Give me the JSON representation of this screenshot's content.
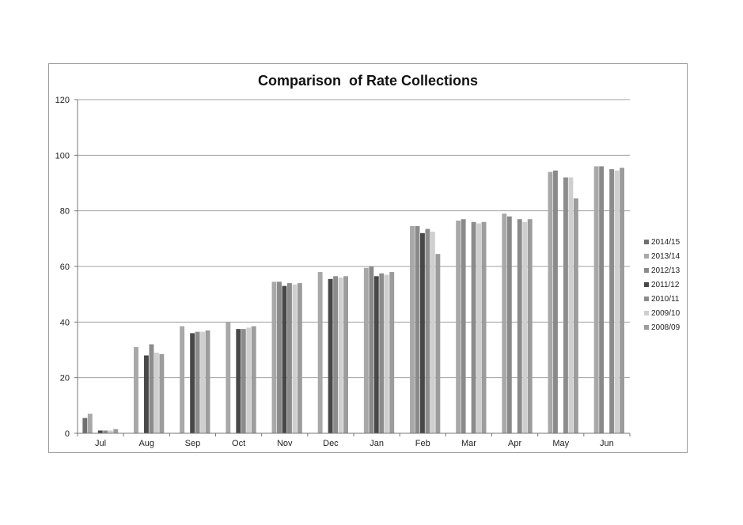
{
  "chart_data": {
    "type": "bar",
    "title": "Comparison  of Rate Collections",
    "xlabel": "",
    "ylabel": "",
    "categories": [
      "Jul",
      "Aug",
      "Sep",
      "Oct",
      "Nov",
      "Dec",
      "Jan",
      "Feb",
      "Mar",
      "Apr",
      "May",
      "Jun"
    ],
    "ylim": [
      0,
      120
    ],
    "yticks": [
      0,
      20,
      40,
      60,
      80,
      100,
      120
    ],
    "grid": true,
    "legend_position": "right",
    "series": [
      {
        "name": "2014/15",
        "color": "#707070",
        "values": [
          5.5,
          null,
          null,
          null,
          null,
          null,
          null,
          null,
          null,
          null,
          null,
          null
        ]
      },
      {
        "name": "2013/14",
        "color": "#a8a8a8",
        "values": [
          7,
          31,
          38.5,
          40,
          54.5,
          58,
          59.5,
          74.5,
          76.5,
          79,
          94,
          96
        ]
      },
      {
        "name": "2012/13",
        "color": "#8a8a8a",
        "values": [
          null,
          null,
          null,
          null,
          54.5,
          null,
          60,
          74.5,
          77,
          78,
          94.5,
          96
        ]
      },
      {
        "name": "2011/12",
        "color": "#484848",
        "values": [
          1,
          28,
          36,
          37.5,
          53,
          55.5,
          56.5,
          72,
          null,
          null,
          null,
          null
        ]
      },
      {
        "name": "2010/11",
        "color": "#8c8c8c",
        "values": [
          1,
          32,
          36.5,
          37.5,
          54,
          56.5,
          57.5,
          73.5,
          76,
          77,
          92,
          95
        ]
      },
      {
        "name": "2009/10",
        "color": "#cfcfcf",
        "values": [
          1,
          29,
          36.5,
          38,
          53.5,
          56,
          57,
          72.5,
          75.5,
          76,
          92,
          94.5
        ]
      },
      {
        "name": "2008/09",
        "color": "#9c9c9c",
        "values": [
          1.5,
          28.5,
          37,
          38.5,
          54,
          56.5,
          58,
          64.5,
          76,
          77,
          84.5,
          95.5
        ]
      }
    ]
  }
}
